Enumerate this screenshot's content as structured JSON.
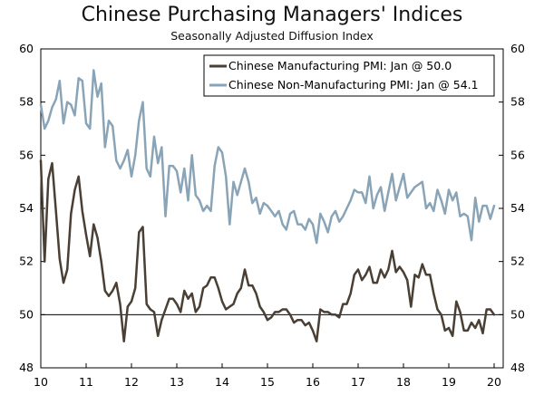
{
  "chart_data": {
    "type": "line",
    "title": "Chinese Purchasing Managers' Indices",
    "subtitle": "Seasonally Adjusted Diffusion Index",
    "xlabel": "",
    "ylabel": "",
    "ylim": [
      48,
      60
    ],
    "yticks": [
      48,
      50,
      52,
      54,
      56,
      58,
      60
    ],
    "xlim": [
      10,
      20.2
    ],
    "xticks": [
      10,
      11,
      12,
      13,
      14,
      15,
      16,
      17,
      18,
      19,
      20
    ],
    "xtick_labels": [
      "10",
      "11",
      "12",
      "13",
      "14",
      "15",
      "16",
      "17",
      "18",
      "19",
      "20"
    ],
    "reference_line": 50,
    "legend_position": "top-right",
    "colors": {
      "manufacturing": "#4a3f35",
      "non_manufacturing": "#8aa4b7",
      "axis": "#000000"
    },
    "series": [
      {
        "name": "Chinese Manufacturing PMI: Jan @ 50.0",
        "key": "manufacturing",
        "x": [
          10.0,
          10.0833,
          10.1667,
          10.25,
          10.3333,
          10.4167,
          10.5,
          10.5833,
          10.6667,
          10.75,
          10.8333,
          10.9167,
          11.0,
          11.0833,
          11.1667,
          11.25,
          11.3333,
          11.4167,
          11.5,
          11.5833,
          11.6667,
          11.75,
          11.8333,
          11.9167,
          12.0,
          12.0833,
          12.1667,
          12.25,
          12.3333,
          12.4167,
          12.5,
          12.5833,
          12.6667,
          12.75,
          12.8333,
          12.9167,
          13.0,
          13.0833,
          13.1667,
          13.25,
          13.3333,
          13.4167,
          13.5,
          13.5833,
          13.6667,
          13.75,
          13.8333,
          13.9167,
          14.0,
          14.0833,
          14.1667,
          14.25,
          14.3333,
          14.4167,
          14.5,
          14.5833,
          14.6667,
          14.75,
          14.8333,
          14.9167,
          15.0,
          15.0833,
          15.1667,
          15.25,
          15.3333,
          15.4167,
          15.5,
          15.5833,
          15.6667,
          15.75,
          15.8333,
          15.9167,
          16.0,
          16.0833,
          16.1667,
          16.25,
          16.3333,
          16.4167,
          16.5,
          16.5833,
          16.6667,
          16.75,
          16.8333,
          16.9167,
          17.0,
          17.0833,
          17.1667,
          17.25,
          17.3333,
          17.4167,
          17.5,
          17.5833,
          17.6667,
          17.75,
          17.8333,
          17.9167,
          18.0,
          18.0833,
          18.1667,
          18.25,
          18.3333,
          18.4167,
          18.5,
          18.5833,
          18.6667,
          18.75,
          18.8333,
          18.9167,
          19.0,
          19.0833,
          19.1667,
          19.25,
          19.3333,
          19.4167,
          19.5,
          19.5833,
          19.6667,
          19.75,
          19.8333,
          19.9167,
          20.0
        ],
        "values": [
          55.8,
          52.0,
          55.1,
          55.7,
          53.9,
          52.1,
          51.2,
          51.7,
          53.8,
          54.7,
          55.2,
          53.9,
          53.0,
          52.2,
          53.4,
          52.9,
          52.0,
          50.9,
          50.7,
          50.9,
          51.2,
          50.4,
          49.0,
          50.3,
          50.5,
          51.0,
          53.1,
          53.3,
          50.4,
          50.2,
          50.1,
          49.2,
          49.8,
          50.2,
          50.6,
          50.6,
          50.4,
          50.1,
          50.9,
          50.6,
          50.8,
          50.1,
          50.3,
          51.0,
          51.1,
          51.4,
          51.4,
          51.0,
          50.5,
          50.2,
          50.3,
          50.4,
          50.8,
          51.0,
          51.7,
          51.1,
          51.1,
          50.8,
          50.3,
          50.1,
          49.8,
          49.9,
          50.1,
          50.1,
          50.2,
          50.2,
          50.0,
          49.7,
          49.8,
          49.8,
          49.6,
          49.7,
          49.4,
          49.0,
          50.2,
          50.1,
          50.1,
          50.0,
          50.0,
          49.9,
          50.4,
          50.4,
          50.8,
          51.5,
          51.7,
          51.3,
          51.5,
          51.8,
          51.2,
          51.2,
          51.7,
          51.4,
          51.7,
          52.4,
          51.6,
          51.8,
          51.6,
          51.3,
          50.3,
          51.5,
          51.4,
          51.9,
          51.5,
          51.5,
          50.8,
          50.2,
          50.0,
          49.4,
          49.5,
          49.2,
          50.5,
          50.1,
          49.4,
          49.4,
          49.7,
          49.5,
          49.8,
          49.3,
          50.2,
          50.2,
          50.0
        ]
      },
      {
        "name": "Chinese Non-Manufacturing PMI: Jan @ 54.1",
        "key": "non_manufacturing",
        "x": [
          10.0,
          10.0833,
          10.1667,
          10.25,
          10.3333,
          10.4167,
          10.5,
          10.5833,
          10.6667,
          10.75,
          10.8333,
          10.9167,
          11.0,
          11.0833,
          11.1667,
          11.25,
          11.3333,
          11.4167,
          11.5,
          11.5833,
          11.6667,
          11.75,
          11.8333,
          11.9167,
          12.0,
          12.0833,
          12.1667,
          12.25,
          12.3333,
          12.4167,
          12.5,
          12.5833,
          12.6667,
          12.75,
          12.8333,
          12.9167,
          13.0,
          13.0833,
          13.1667,
          13.25,
          13.3333,
          13.4167,
          13.5,
          13.5833,
          13.6667,
          13.75,
          13.8333,
          13.9167,
          14.0,
          14.0833,
          14.1667,
          14.25,
          14.3333,
          14.4167,
          14.5,
          14.5833,
          14.6667,
          14.75,
          14.8333,
          14.9167,
          15.0,
          15.0833,
          15.1667,
          15.25,
          15.3333,
          15.4167,
          15.5,
          15.5833,
          15.6667,
          15.75,
          15.8333,
          15.9167,
          16.0,
          16.0833,
          16.1667,
          16.25,
          16.3333,
          16.4167,
          16.5,
          16.5833,
          16.6667,
          16.75,
          16.8333,
          16.9167,
          17.0,
          17.0833,
          17.1667,
          17.25,
          17.3333,
          17.4167,
          17.5,
          17.5833,
          17.6667,
          17.75,
          17.8333,
          17.9167,
          18.0,
          18.0833,
          18.1667,
          18.25,
          18.3333,
          18.4167,
          18.5,
          18.5833,
          18.6667,
          18.75,
          18.8333,
          18.9167,
          19.0,
          19.0833,
          19.1667,
          19.25,
          19.3333,
          19.4167,
          19.5,
          19.5833,
          19.6667,
          19.75,
          19.8333,
          19.9167,
          20.0
        ],
        "values": [
          57.9,
          57.0,
          57.3,
          57.8,
          58.1,
          58.8,
          57.2,
          58.0,
          57.9,
          57.5,
          58.9,
          58.8,
          57.2,
          57.0,
          59.2,
          58.2,
          58.7,
          56.3,
          57.3,
          57.1,
          55.8,
          55.5,
          55.8,
          56.2,
          55.2,
          56.0,
          57.3,
          58.0,
          55.5,
          55.2,
          56.7,
          55.7,
          56.3,
          53.7,
          55.6,
          55.6,
          55.4,
          54.6,
          55.5,
          54.3,
          56.0,
          54.5,
          54.3,
          53.9,
          54.1,
          53.9,
          55.6,
          56.3,
          56.1,
          55.2,
          53.4,
          55.0,
          54.5,
          55.0,
          55.5,
          55.0,
          54.2,
          54.4,
          53.8,
          54.2,
          54.1,
          53.9,
          53.7,
          53.9,
          53.4,
          53.2,
          53.8,
          53.9,
          53.4,
          53.4,
          53.2,
          53.6,
          53.4,
          52.7,
          53.8,
          53.5,
          53.1,
          53.7,
          53.9,
          53.5,
          53.7,
          54.0,
          54.3,
          54.7,
          54.6,
          54.6,
          54.2,
          55.2,
          54.0,
          54.5,
          54.8,
          53.9,
          54.6,
          55.3,
          54.3,
          54.8,
          55.3,
          54.4,
          54.6,
          54.8,
          54.9,
          55.0,
          54.0,
          54.2,
          53.9,
          54.7,
          54.3,
          53.8,
          54.7,
          54.3,
          54.6,
          53.7,
          53.8,
          53.7,
          52.8,
          54.4,
          53.5,
          54.1,
          54.1,
          53.6,
          54.1
        ]
      }
    ]
  }
}
